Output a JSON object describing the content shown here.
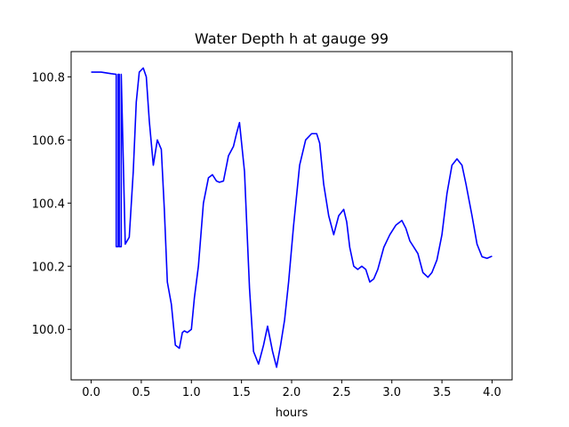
{
  "chart_data": {
    "type": "line",
    "title": "Water Depth h at gauge 99",
    "xlabel": "hours",
    "ylabel": "",
    "xlim": [
      -0.2,
      4.2
    ],
    "ylim": [
      99.84,
      100.88
    ],
    "x_ticks": [
      0.0,
      0.5,
      1.0,
      1.5,
      2.0,
      2.5,
      3.0,
      3.5,
      4.0
    ],
    "x_tick_labels": [
      "0.0",
      "0.5",
      "1.0",
      "1.5",
      "2.0",
      "2.5",
      "3.0",
      "3.5",
      "4.0"
    ],
    "y_ticks": [
      100.0,
      100.2,
      100.4,
      100.6,
      100.8
    ],
    "y_tick_labels": [
      "100.0",
      "100.2",
      "100.4",
      "100.6",
      "100.8"
    ],
    "grid": false,
    "legend": "none",
    "series": [
      {
        "color": "#0000ff",
        "x": [
          0.0,
          0.1,
          0.2,
          0.25,
          0.25,
          0.27,
          0.27,
          0.28,
          0.28,
          0.3,
          0.3,
          0.34,
          0.38,
          0.42,
          0.45,
          0.48,
          0.52,
          0.55,
          0.58,
          0.62,
          0.66,
          0.7,
          0.73,
          0.76,
          0.8,
          0.84,
          0.88,
          0.91,
          0.93,
          0.96,
          1.0,
          1.03,
          1.07,
          1.12,
          1.17,
          1.21,
          1.25,
          1.28,
          1.32,
          1.37,
          1.42,
          1.45,
          1.48,
          1.53,
          1.55,
          1.58,
          1.62,
          1.67,
          1.72,
          1.76,
          1.81,
          1.85,
          1.89,
          1.93,
          1.97,
          2.02,
          2.08,
          2.14,
          2.2,
          2.25,
          2.28,
          2.32,
          2.37,
          2.42,
          2.47,
          2.52,
          2.55,
          2.58,
          2.62,
          2.66,
          2.7,
          2.74,
          2.78,
          2.82,
          2.86,
          2.92,
          2.98,
          3.04,
          3.1,
          3.14,
          3.18,
          3.22,
          3.26,
          3.31,
          3.36,
          3.4,
          3.45,
          3.5,
          3.55,
          3.6,
          3.65,
          3.7,
          3.74,
          3.8,
          3.85,
          3.9,
          3.95,
          4.0
        ],
        "y": [
          100.815,
          100.815,
          100.81,
          100.808,
          100.262,
          100.262,
          100.808,
          100.808,
          100.262,
          100.262,
          100.808,
          100.27,
          100.292,
          100.5,
          100.72,
          100.815,
          100.828,
          100.8,
          100.66,
          100.52,
          100.6,
          100.57,
          100.38,
          100.15,
          100.08,
          99.95,
          99.94,
          99.99,
          99.995,
          99.99,
          100.0,
          100.1,
          100.2,
          100.4,
          100.48,
          100.49,
          100.47,
          100.466,
          100.47,
          100.55,
          100.58,
          100.62,
          100.655,
          100.5,
          100.35,
          100.13,
          99.93,
          99.89,
          99.95,
          100.01,
          99.93,
          99.88,
          99.95,
          100.03,
          100.15,
          100.33,
          100.52,
          100.6,
          100.62,
          100.62,
          100.59,
          100.46,
          100.36,
          100.3,
          100.36,
          100.38,
          100.34,
          100.26,
          100.2,
          100.19,
          100.2,
          100.19,
          100.15,
          100.16,
          100.19,
          100.26,
          100.3,
          100.33,
          100.345,
          100.32,
          100.28,
          100.26,
          100.24,
          100.18,
          100.165,
          100.18,
          100.22,
          100.3,
          100.43,
          100.52,
          100.54,
          100.52,
          100.46,
          100.36,
          100.27,
          100.23,
          100.225,
          100.232
        ]
      }
    ]
  }
}
